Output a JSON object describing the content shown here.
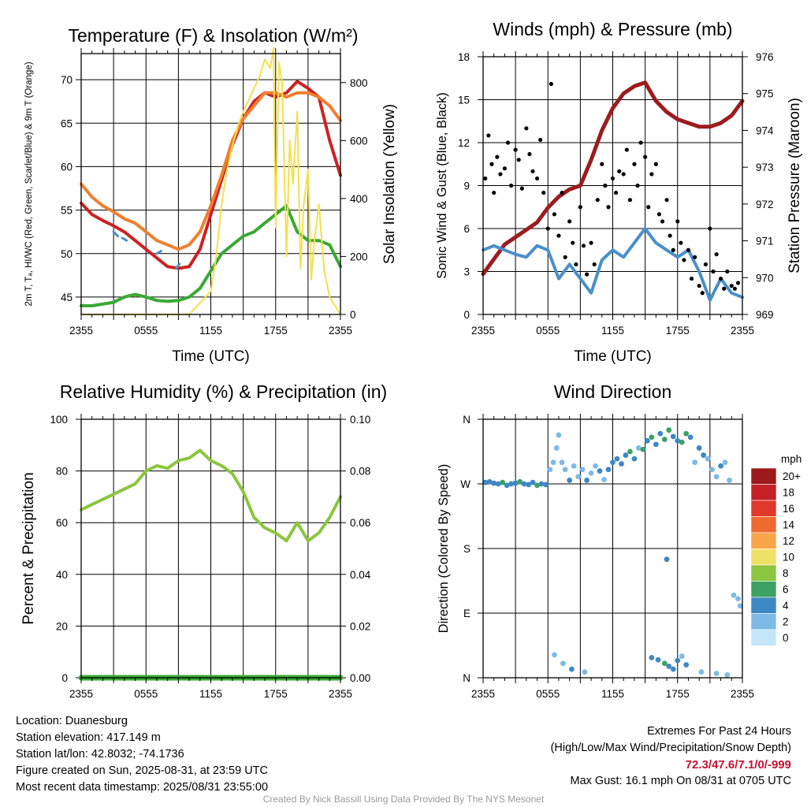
{
  "chart_data": [
    {
      "type": "line",
      "title": "Temperature (F) & Insolation (W/m²)",
      "xlabel": "Time (UTC)",
      "ylabel": "2m T, Tₐ, HI/WC (Red, Green, Scarlet/Blue) & 9m T (Orange)",
      "y2label": "Solar Insolation (Yellow)",
      "x_ticks": [
        "2355",
        "0555",
        "1155",
        "1755",
        "2355"
      ],
      "y_ticks": [
        45,
        50,
        55,
        60,
        65,
        70
      ],
      "y2_ticks": [
        0,
        200,
        400,
        600,
        800
      ],
      "xlim": [
        0,
        24
      ],
      "ylim": [
        43,
        73
      ],
      "y2lim": [
        0,
        900
      ],
      "grid": true,
      "series": [
        {
          "name": "2m T",
          "color": "#cc2222",
          "x": [
            0,
            1,
            2,
            3,
            4,
            5,
            6,
            7,
            8,
            9,
            10,
            11,
            12,
            13,
            14,
            15,
            16,
            17,
            18,
            19,
            20,
            21,
            22,
            23,
            24
          ],
          "values": [
            55.8,
            54.5,
            53.8,
            53.2,
            52.5,
            51.5,
            50.5,
            49.5,
            48.5,
            48.3,
            48.5,
            50.5,
            54.5,
            58.5,
            62.5,
            65.5,
            67.5,
            68.5,
            68.0,
            68.5,
            69.8,
            69.0,
            68.0,
            63.0,
            59.0
          ]
        },
        {
          "name": "9m T",
          "color": "#f07f30",
          "x": [
            0,
            1,
            2,
            3,
            4,
            5,
            6,
            7,
            8,
            9,
            10,
            11,
            12,
            13,
            14,
            15,
            16,
            17,
            18,
            19,
            20,
            21,
            22,
            23,
            24
          ],
          "values": [
            58.0,
            56.5,
            55.5,
            54.8,
            54.0,
            53.5,
            52.5,
            51.5,
            51.0,
            50.5,
            51.0,
            52.5,
            55.5,
            59.0,
            63.0,
            65.5,
            67.0,
            68.5,
            68.5,
            68.0,
            68.5,
            68.5,
            68.0,
            67.0,
            65.3
          ]
        },
        {
          "name": "Td",
          "color": "#3aa935",
          "x": [
            0,
            1,
            2,
            3,
            4,
            5,
            6,
            7,
            8,
            9,
            10,
            11,
            12,
            13,
            14,
            15,
            16,
            17,
            18,
            19,
            20,
            21,
            22,
            23,
            24
          ],
          "values": [
            44.0,
            44.0,
            44.2,
            44.4,
            45.0,
            45.3,
            45.0,
            44.6,
            44.5,
            44.6,
            45.0,
            46.0,
            48.0,
            50.0,
            51.0,
            52.0,
            52.5,
            53.5,
            54.5,
            55.5,
            52.5,
            51.5,
            51.5,
            51.0,
            48.5
          ]
        },
        {
          "name": "HI/WC",
          "color": "#4a8fc9",
          "x": [
            3.0,
            3.4,
            3.8,
            4.2,
            7.0,
            7.4,
            8.8,
            9.1
          ],
          "values": [
            52.5,
            52.0,
            51.8,
            51.5,
            50.0,
            50.3,
            48.3,
            48.8
          ]
        },
        {
          "name": "Solar Insolation",
          "axis": "y2",
          "color": "#f4e04d",
          "x": [
            0,
            6,
            10,
            12,
            12.5,
            13,
            13.5,
            14,
            14.5,
            15,
            15.5,
            16,
            16.5,
            17,
            17.5,
            17.8,
            18,
            18.3,
            18.6,
            19,
            19.3,
            19.6,
            20,
            20.3,
            20.6,
            21,
            21.3,
            21.6,
            22,
            22.5,
            23,
            24
          ],
          "values": [
            0,
            0,
            0,
            80,
            200,
            380,
            500,
            580,
            650,
            700,
            740,
            780,
            820,
            880,
            850,
            920,
            300,
            870,
            800,
            200,
            600,
            450,
            700,
            160,
            380,
            500,
            120,
            260,
            380,
            150,
            60,
            0
          ]
        }
      ]
    },
    {
      "type": "line",
      "title": "Winds (mph) & Pressure (mb)",
      "xlabel": "Time (UTC)",
      "ylabel": "Sonic Wind & Gust (Blue, Black)",
      "y2label": "Station Pressure (Maroon)",
      "x_ticks": [
        "2355",
        "0555",
        "1155",
        "1755",
        "2355"
      ],
      "y_ticks": [
        0,
        3,
        6,
        9,
        12,
        15,
        18
      ],
      "y2_ticks": [
        969,
        970,
        971,
        972,
        973,
        974,
        975,
        976
      ],
      "xlim": [
        0,
        24
      ],
      "ylim": [
        0,
        18
      ],
      "y2lim": [
        969,
        976
      ],
      "grid": true,
      "series": [
        {
          "name": "Pressure",
          "axis": "y2",
          "color": "#9b1c1f",
          "x": [
            0,
            1,
            2,
            3,
            4,
            5,
            6,
            7,
            8,
            9,
            10,
            11,
            12,
            13,
            14,
            15,
            16,
            17,
            18,
            19,
            20,
            21,
            22,
            23,
            24
          ],
          "values": [
            970.1,
            970.5,
            970.9,
            971.1,
            971.3,
            971.5,
            971.9,
            972.2,
            972.4,
            972.5,
            973.2,
            974.0,
            974.6,
            975.0,
            975.2,
            975.3,
            974.8,
            974.5,
            974.3,
            974.2,
            974.1,
            974.1,
            974.2,
            974.4,
            974.8
          ]
        },
        {
          "name": "Sonic Wind",
          "color": "#4a8fc9",
          "x": [
            0,
            1,
            2,
            3,
            4,
            5,
            6,
            7,
            8,
            9,
            10,
            11,
            12,
            13,
            14,
            15,
            16,
            17,
            18,
            19,
            20,
            21,
            22,
            23,
            24
          ],
          "values": [
            4.5,
            4.8,
            4.5,
            4.2,
            4.0,
            4.8,
            4.5,
            2.5,
            3.5,
            2.5,
            1.5,
            3.8,
            4.5,
            4.0,
            5.0,
            6.0,
            5.0,
            4.5,
            4.0,
            4.5,
            3.0,
            1.0,
            2.5,
            1.5,
            1.2
          ]
        },
        {
          "name": "Gust",
          "type": "scatter",
          "color": "#000000",
          "x": [
            0.2,
            0.5,
            0.8,
            1.0,
            1.3,
            1.6,
            2.0,
            2.3,
            2.6,
            3.0,
            3.3,
            3.6,
            4.0,
            4.3,
            4.6,
            5.0,
            5.3,
            5.6,
            6.0,
            6.3,
            6.6,
            7.0,
            7.3,
            7.6,
            8.0,
            8.3,
            8.6,
            9.0,
            9.3,
            9.6,
            10.0,
            10.3,
            10.6,
            11.0,
            11.3,
            11.6,
            12.0,
            12.3,
            12.6,
            13.0,
            13.3,
            13.6,
            14.0,
            14.3,
            14.6,
            15.0,
            15.3,
            15.6,
            16.0,
            16.3,
            16.6,
            17.0,
            17.3,
            17.6,
            18.0,
            18.3,
            18.6,
            19.0,
            19.3,
            19.6,
            20.0,
            20.3,
            20.6,
            21.0,
            21.3,
            21.6,
            22.0,
            22.3,
            22.6,
            23.0,
            23.3,
            23.6
          ],
          "values": [
            9.5,
            12.5,
            10.5,
            8.5,
            11.0,
            9.8,
            10.2,
            12.0,
            9.0,
            11.5,
            10.8,
            8.8,
            13.0,
            11.2,
            10.0,
            9.5,
            12.2,
            8.5,
            6.0,
            16.1,
            7.0,
            5.5,
            8.5,
            4.0,
            6.5,
            5.0,
            3.5,
            7.5,
            4.8,
            2.8,
            5.0,
            3.5,
            8.0,
            10.5,
            9.0,
            7.5,
            9.5,
            8.5,
            10.0,
            9.8,
            11.5,
            8.0,
            10.5,
            9.0,
            12.0,
            11.0,
            7.5,
            9.8,
            10.5,
            7.0,
            6.5,
            8.0,
            5.5,
            4.5,
            6.5,
            5.0,
            3.8,
            4.5,
            2.5,
            4.0,
            2.0,
            1.5,
            3.5,
            6.0,
            3.0,
            4.2,
            2.5,
            1.8,
            3.0,
            2.0,
            1.8,
            2.2
          ]
        }
      ]
    },
    {
      "type": "line",
      "title": "Relative Humidity (%) & Precipitation (in)",
      "xlabel": "",
      "ylabel": "Percent & Precipitation",
      "x_ticks": [
        "2355",
        "0555",
        "1155",
        "1755",
        "2355"
      ],
      "y_ticks": [
        0,
        20,
        40,
        60,
        80,
        100
      ],
      "y2_ticks": [
        "0.00",
        "0.02",
        "0.04",
        "0.06",
        "0.08",
        "0.10"
      ],
      "xlim": [
        0,
        24
      ],
      "ylim": [
        0,
        100
      ],
      "y2lim": [
        0,
        0.1
      ],
      "grid": true,
      "series": [
        {
          "name": "Relative Humidity",
          "color": "#8cc540",
          "x": [
            0,
            1,
            2,
            3,
            4,
            5,
            6,
            7,
            8,
            9,
            10,
            11,
            12,
            13,
            14,
            15,
            16,
            17,
            18,
            19,
            20,
            21,
            22,
            23,
            24
          ],
          "values": [
            65,
            67,
            69,
            71,
            73,
            75,
            80,
            82,
            81,
            84,
            85,
            88,
            84,
            82,
            79,
            72,
            62,
            58,
            56,
            53,
            60,
            53,
            56,
            62,
            70
          ]
        },
        {
          "name": "Precipitation",
          "axis": "y2",
          "color": "#3aa935",
          "x": [
            0,
            24
          ],
          "values": [
            0,
            0
          ]
        }
      ]
    },
    {
      "type": "scatter",
      "title": "Wind Direction",
      "xlabel": "",
      "ylabel": "Direction (Colored By Speed)",
      "x_ticks": [
        "2355",
        "0555",
        "1155",
        "1755",
        "2355"
      ],
      "y_ticks": [
        "N",
        "E",
        "S",
        "W",
        "N"
      ],
      "xlim": [
        0,
        24
      ],
      "ylim": [
        0,
        360
      ],
      "grid": true,
      "legend": {
        "title": "mph",
        "placement": "right",
        "levels": [
          "20+",
          "18",
          "16",
          "14",
          "12",
          "10",
          "8",
          "6",
          "4",
          "2",
          "0"
        ],
        "colors": [
          "#9e1a1a",
          "#c62027",
          "#e0382a",
          "#ef6a2e",
          "#f8a54a",
          "#efe067",
          "#8cc540",
          "#3da163",
          "#3d88c4",
          "#7dbbe6",
          "#c4e6f9"
        ]
      },
      "points": {
        "x": [
          0.2,
          0.6,
          1.0,
          1.4,
          1.8,
          2.2,
          2.6,
          3.0,
          3.4,
          3.8,
          4.2,
          4.6,
          5.0,
          5.4,
          5.8,
          6.2,
          6.5,
          6.8,
          7.0,
          7.3,
          7.6,
          8.0,
          8.4,
          8.8,
          9.2,
          9.6,
          10.0,
          10.4,
          10.8,
          11.2,
          11.6,
          12.0,
          12.4,
          12.8,
          13.2,
          13.6,
          14.0,
          14.4,
          14.8,
          15.2,
          15.6,
          16.0,
          16.4,
          16.8,
          17.2,
          17.6,
          18.0,
          18.4,
          18.8,
          19.2,
          19.6,
          20.0,
          20.4,
          20.8,
          21.2,
          21.6,
          22.0,
          22.4,
          22.8,
          23.2,
          23.6,
          23.8,
          6.6,
          7.4,
          8.2,
          9.4,
          15.6,
          16.2,
          16.8,
          17.2,
          17.6,
          18.0,
          18.4,
          18.8,
          20.2,
          21.6,
          22.6,
          17.0
        ],
        "values": [
          272,
          273,
          271,
          270,
          272,
          268,
          270,
          271,
          273,
          270,
          269,
          272,
          268,
          270,
          269,
          290,
          300,
          320,
          338,
          300,
          290,
          275,
          295,
          280,
          290,
          275,
          285,
          295,
          288,
          276,
          290,
          300,
          305,
          298,
          310,
          315,
          305,
          320,
          318,
          330,
          335,
          325,
          340,
          332,
          345,
          336,
          330,
          328,
          340,
          335,
          300,
          320,
          310,
          305,
          290,
          280,
          295,
          300,
          275,
          115,
          110,
          100,
          32,
          20,
          12,
          8,
          28,
          25,
          20,
          16,
          12,
          24,
          30,
          18,
          8,
          6,
          4,
          165
        ],
        "speeds": [
          4,
          4,
          4,
          4,
          5,
          4,
          4,
          4,
          5,
          4,
          4,
          4,
          5,
          4,
          4,
          2,
          2,
          1,
          2,
          1,
          2,
          3,
          2,
          1,
          2,
          3,
          2,
          1,
          3,
          2,
          4,
          4,
          4,
          3,
          4,
          5,
          4,
          2,
          5,
          4,
          6,
          4,
          4,
          6,
          5,
          4,
          4,
          5,
          6,
          3,
          1,
          4,
          3,
          2,
          2,
          1,
          3,
          2,
          1,
          1,
          1,
          1,
          1,
          2,
          4,
          1,
          4,
          3,
          6,
          4,
          4,
          3,
          2,
          3,
          1,
          1,
          2,
          4
        ]
      }
    }
  ],
  "info": {
    "location": "Location: Duanesburg",
    "elevation": "Station elevation: 417.149 m",
    "latlon": "Station lat/lon: 42.8032; -74.1736",
    "created": "Figure created on Sun, 2025-08-31, at 23:59 UTC",
    "recent": "Most recent data timestamp: 2025/08/31 23:55:00"
  },
  "extremes": {
    "title": "Extremes For Past 24 Hours",
    "subtitle": "(High/Low/Max Wind/Precipitation/Snow Depth)",
    "values": "72.3/47.6/7.1/0/-999",
    "max_gust": "Max Gust: 16.1 mph On 08/31 at 0705 UTC"
  },
  "credit": "Created By Nick Bassill Using Data Provided By The NYS Mesonet"
}
